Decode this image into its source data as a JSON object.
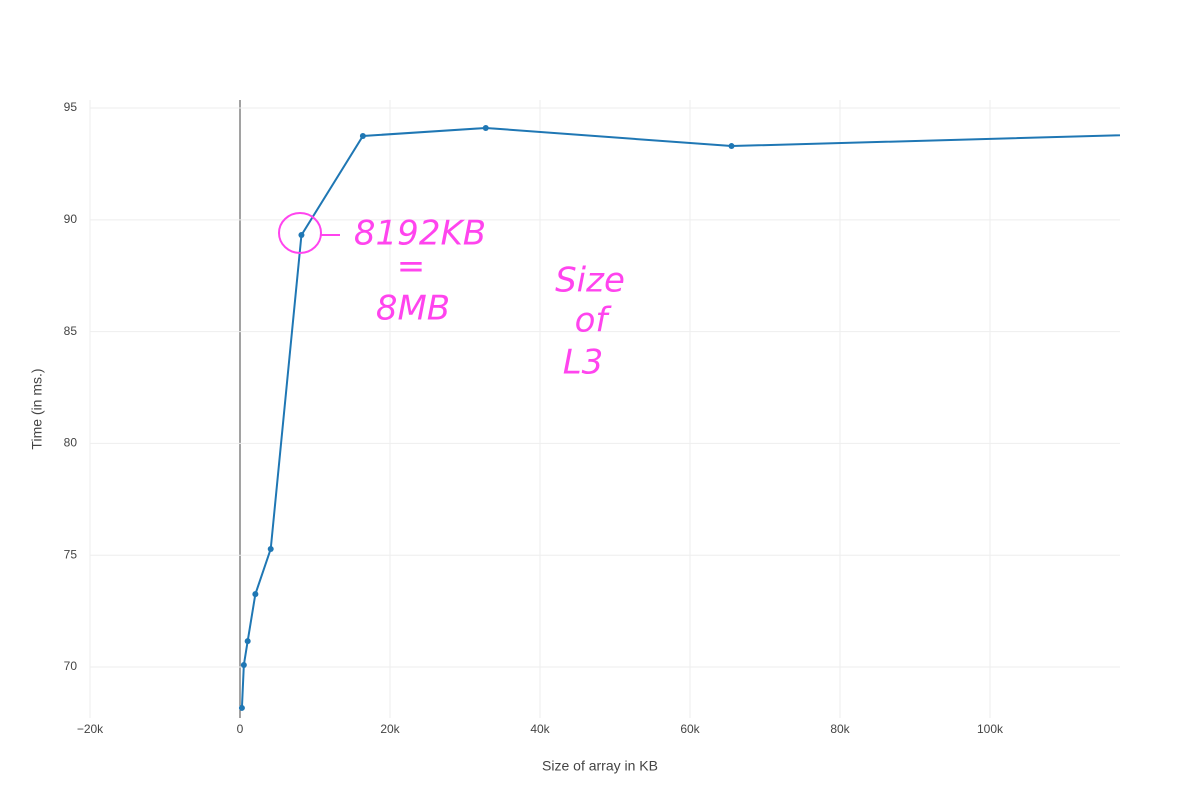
{
  "chart_data": {
    "type": "line",
    "x_label": "Size of array in KB",
    "y_label": "Time (in ms.)",
    "x": [
      256,
      512,
      1024,
      2048,
      4096,
      8192,
      16384,
      32768,
      65536,
      131072
    ],
    "series": [
      {
        "color": "#1f77b4",
        "values": [
          68.17,
          70.09,
          71.16,
          73.26,
          75.28,
          89.32,
          93.75,
          94.11,
          93.3,
          93.91
        ]
      }
    ],
    "xlim": [
      -20000,
      117333
    ],
    "ylim": [
      67.72,
      95.36
    ],
    "xticks": [
      {
        "value": -20000,
        "label": "−20k"
      },
      0,
      {
        "value": 20000,
        "label": "20k"
      },
      {
        "value": 40000,
        "label": "40k"
      },
      {
        "value": 60000,
        "label": "60k"
      },
      {
        "value": 80000,
        "label": "80k"
      },
      {
        "value": 100000,
        "label": "100k"
      }
    ],
    "yticks": [
      70,
      75,
      80,
      85,
      90,
      95
    ],
    "grid": true,
    "annotations": [
      "8192KB",
      "=",
      "8MB",
      "Size",
      "of",
      "L3"
    ]
  }
}
